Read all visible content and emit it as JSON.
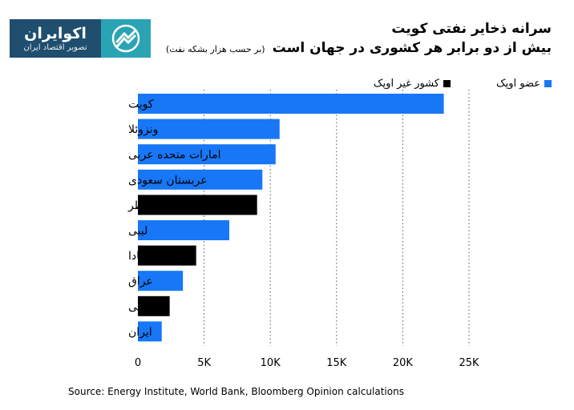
{
  "logo": {
    "name": "اکوایران",
    "tagline": "تصویر اقتصاد ایران"
  },
  "header": {
    "title": "سرانه ذخایر نفتی کویت",
    "subtitle": "بیش از دو برابر هر کشوری در جهان است",
    "subtitle_note": "(بر حسب هزار بشکه نفت)"
  },
  "legend": {
    "opec_label": "عضو اوپک",
    "non_opec_label": "کشور غیر اوپک"
  },
  "colors": {
    "opec": "#1777f6",
    "non_opec": "#000000"
  },
  "chart_data": {
    "type": "bar",
    "orientation": "horizontal",
    "categories": [
      "کویت",
      "ونزوئلا",
      "امارات متحده عربی",
      "عربستان سعودی",
      "قطر",
      "لیبی",
      "کانادا",
      "عراق",
      "برونئی",
      "ایران"
    ],
    "values": [
      23.1,
      10.7,
      10.4,
      9.4,
      9.0,
      6.9,
      4.4,
      3.4,
      2.4,
      1.8
    ],
    "membership": [
      "opec",
      "opec",
      "opec",
      "opec",
      "non_opec",
      "opec",
      "non_opec",
      "opec",
      "non_opec",
      "opec"
    ],
    "xlim": [
      0,
      25
    ],
    "x_ticks": [
      "0",
      "5K",
      "10K",
      "15K",
      "20K",
      "25K"
    ],
    "grid": "vertical dotted"
  },
  "footer": {
    "source": "Source: Energy Institute, World Bank, Bloomberg Opinion calculations"
  }
}
